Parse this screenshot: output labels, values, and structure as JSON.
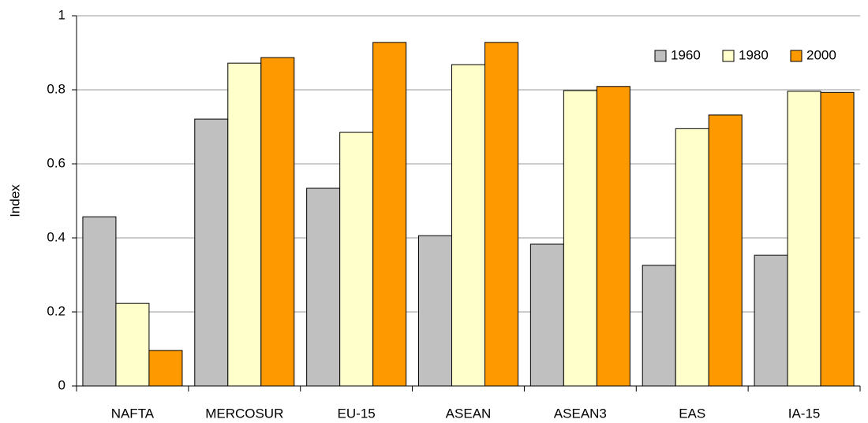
{
  "chart_data": {
    "type": "bar",
    "ylabel": "Index",
    "categories": [
      "NAFTA",
      "MERCOSUR",
      "EU-15",
      "ASEAN",
      "ASEAN3",
      "EAS",
      "IA-15"
    ],
    "series": [
      {
        "name": "1960",
        "color": "#c0c0c0",
        "values": [
          0.457,
          0.721,
          0.534,
          0.406,
          0.383,
          0.326,
          0.353
        ]
      },
      {
        "name": "1980",
        "color": "#ffffcc",
        "values": [
          0.223,
          0.872,
          0.685,
          0.868,
          0.798,
          0.695,
          0.796
        ]
      },
      {
        "name": "2000",
        "color": "#ff9900",
        "values": [
          0.096,
          0.887,
          0.928,
          0.928,
          0.809,
          0.732,
          0.793
        ]
      }
    ],
    "ylim": [
      0,
      1
    ],
    "yticks": [
      0,
      0.2,
      0.4,
      0.6,
      0.8,
      1
    ],
    "grid": true,
    "legend": "upper right"
  }
}
